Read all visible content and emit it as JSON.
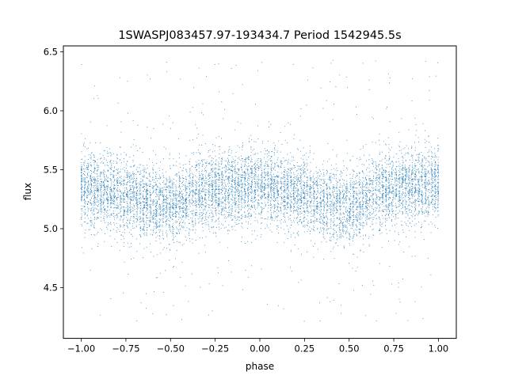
{
  "chart_data": {
    "type": "scatter",
    "title": "1SWASPJ083457.97-193434.7 Period 1542945.5s",
    "xlabel": "phase",
    "ylabel": "flux",
    "xlim": [
      -1.1,
      1.1
    ],
    "ylim": [
      4.07,
      6.55
    ],
    "xticks": [
      {
        "value": -1.0,
        "label": "−1.00"
      },
      {
        "value": -0.75,
        "label": "−0.75"
      },
      {
        "value": -0.5,
        "label": "−0.50"
      },
      {
        "value": -0.25,
        "label": "−0.25"
      },
      {
        "value": 0.0,
        "label": "0.00"
      },
      {
        "value": 0.25,
        "label": "0.25"
      },
      {
        "value": 0.5,
        "label": "0.50"
      },
      {
        "value": 0.75,
        "label": "0.75"
      },
      {
        "value": 1.0,
        "label": "1.00"
      }
    ],
    "yticks": [
      {
        "value": 4.5,
        "label": "4.5"
      },
      {
        "value": 5.0,
        "label": "5.0"
      },
      {
        "value": 5.5,
        "label": "5.5"
      },
      {
        "value": 6.0,
        "label": "6.0"
      },
      {
        "value": 6.5,
        "label": "6.5"
      }
    ],
    "grid": false,
    "marker_color": "#1f77b4",
    "series": [
      {
        "x": [
          -1.0,
          -0.975,
          -0.95,
          -0.925,
          -0.9,
          -0.875,
          -0.85,
          -0.825,
          -0.8,
          -0.775,
          -0.75,
          -0.725,
          -0.7,
          -0.675,
          -0.65,
          -0.625,
          -0.6,
          -0.575,
          -0.55,
          -0.525,
          -0.5,
          -0.475,
          -0.45,
          -0.425,
          -0.4,
          -0.375,
          -0.35,
          -0.325,
          -0.3,
          -0.275,
          -0.25,
          -0.225,
          -0.2,
          -0.175,
          -0.15,
          -0.125,
          -0.1,
          -0.075,
          -0.05,
          -0.025,
          0.0,
          0.025,
          0.05,
          0.075,
          0.1,
          0.125,
          0.15,
          0.175,
          0.2,
          0.225,
          0.25,
          0.275,
          0.3,
          0.325,
          0.35,
          0.375,
          0.4,
          0.425,
          0.45,
          0.475,
          0.5,
          0.525,
          0.55,
          0.575,
          0.6,
          0.625,
          0.65,
          0.675,
          0.7,
          0.725,
          0.75,
          0.775,
          0.8,
          0.825,
          0.85,
          0.875,
          0.9,
          0.925,
          0.95,
          0.975,
          1.0
        ],
        "y": [
          5.38,
          5.36,
          5.35,
          5.34,
          5.33,
          5.32,
          5.31,
          5.3,
          5.3,
          5.29,
          5.28,
          5.27,
          5.26,
          5.25,
          5.24,
          5.23,
          5.22,
          5.21,
          5.2,
          5.2,
          5.2,
          5.21,
          5.22,
          5.24,
          5.26,
          5.28,
          5.3,
          5.31,
          5.32,
          5.33,
          5.33,
          5.33,
          5.33,
          5.33,
          5.33,
          5.33,
          5.34,
          5.35,
          5.36,
          5.37,
          5.38,
          5.37,
          5.36,
          5.35,
          5.34,
          5.33,
          5.32,
          5.31,
          5.3,
          5.29,
          5.28,
          5.27,
          5.26,
          5.25,
          5.24,
          5.23,
          5.22,
          5.21,
          5.2,
          5.2,
          5.2,
          5.21,
          5.22,
          5.24,
          5.26,
          5.28,
          5.3,
          5.31,
          5.32,
          5.33,
          5.33,
          5.34,
          5.34,
          5.35,
          5.35,
          5.36,
          5.36,
          5.37,
          5.37,
          5.38,
          5.38
        ],
        "spread": 0.16,
        "outlier_range": [
          4.2,
          6.45
        ]
      }
    ]
  }
}
